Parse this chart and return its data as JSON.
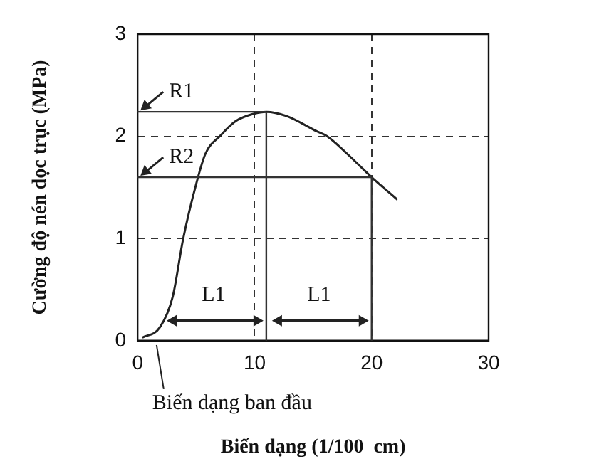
{
  "chart_data": {
    "type": "line",
    "xlabel": "Biến dạng (1/100  cm)",
    "ylabel": "Cường độ nén dọc trục (MPa)",
    "x": [
      0.4,
      1.9,
      3.0,
      3.9,
      5.0,
      5.8,
      7.1,
      8.4,
      9.9,
      11.0,
      12.7,
      15.3,
      16.2,
      17.9,
      20.0,
      22.2
    ],
    "series": [
      {
        "color": "#222222",
        "values": [
          0.03,
          0.13,
          0.43,
          1.0,
          1.53,
          1.83,
          2.01,
          2.15,
          2.22,
          2.24,
          2.2,
          2.05,
          2.0,
          1.83,
          1.6,
          1.38
        ]
      }
    ],
    "xlim": [
      0,
      30
    ],
    "xticks": [
      0,
      10,
      20,
      30
    ],
    "ylim": [
      0,
      3
    ],
    "yticks": [
      0,
      1,
      2,
      3
    ],
    "grid": true,
    "marker": "none",
    "line_style": "solid",
    "ref_lines": [
      {
        "axis": "y",
        "value": 2.24,
        "label": "R1"
      },
      {
        "axis": "y",
        "value": 1.6,
        "label": "R2"
      },
      {
        "axis": "x",
        "value": 11,
        "label": null
      },
      {
        "axis": "x",
        "value": 20,
        "label": null
      }
    ],
    "annotations": [
      "L1",
      "L1",
      {
        "text": "Biến dạng ban đầu",
        "x": 1.5,
        "y": 0
      }
    ]
  }
}
